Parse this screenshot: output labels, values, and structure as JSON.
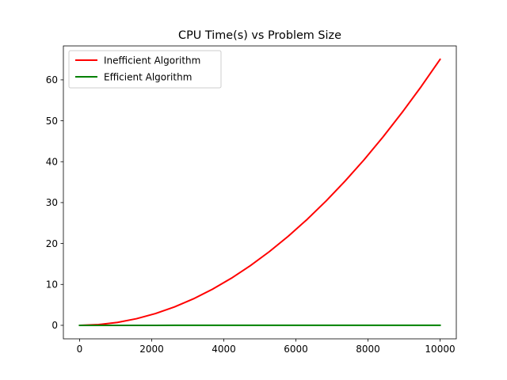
{
  "chart_data": {
    "type": "line",
    "title": "CPU Time(s) vs Problem Size",
    "xlabel": "",
    "ylabel": "",
    "xlim": [
      -450,
      10450
    ],
    "ylim": [
      -3.3,
      68.3
    ],
    "xticks": [
      0,
      2000,
      4000,
      6000,
      8000,
      10000
    ],
    "yticks": [
      0,
      10,
      20,
      30,
      40,
      50,
      60
    ],
    "grid": false,
    "legend": "top-left",
    "x": [
      0,
      526,
      1053,
      1579,
      2105,
      2632,
      3158,
      3684,
      4211,
      4737,
      5263,
      5789,
      6316,
      6842,
      7368,
      7895,
      8421,
      8947,
      9474,
      10000
    ],
    "series": [
      {
        "name": "Inefficient Algorithm",
        "color": "#ff0000",
        "values": [
          0,
          0.18,
          0.72,
          1.62,
          2.88,
          4.5,
          6.48,
          8.82,
          11.52,
          14.59,
          18.01,
          21.79,
          25.93,
          30.43,
          35.29,
          40.51,
          46.09,
          52.04,
          58.34,
          65.0
        ]
      },
      {
        "name": "Efficient Algorithm",
        "color": "#008000",
        "values": [
          0,
          0.001,
          0.001,
          0.002,
          0.002,
          0.003,
          0.003,
          0.004,
          0.004,
          0.005,
          0.005,
          0.006,
          0.006,
          0.007,
          0.007,
          0.008,
          0.008,
          0.009,
          0.009,
          0.01
        ]
      }
    ]
  }
}
